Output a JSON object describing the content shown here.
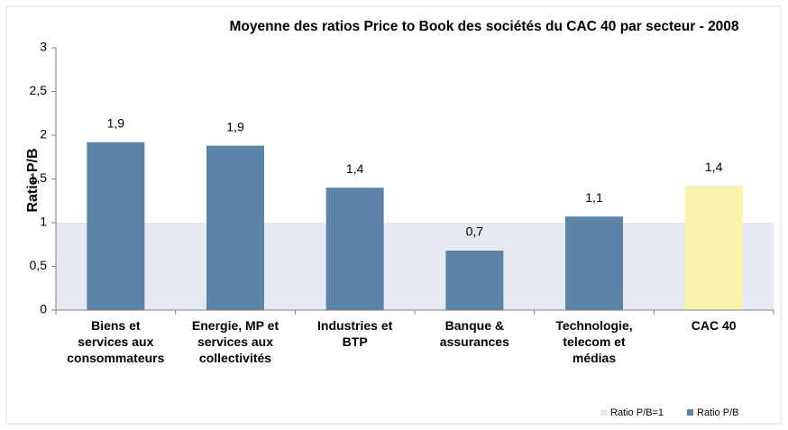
{
  "chart_data": {
    "type": "bar",
    "title": "Moyenne des ratios Price to Book des sociétés du CAC 40 par secteur - 2008",
    "y_label": "Ratio P/B",
    "categories": [
      "Biens et\nservices aux\nconsommateurs",
      "Energie, MP et\nservices aux\ncollectivités",
      "Industries et\nBTP",
      "Banque &\nassurances",
      "Technologie,\ntelecom et\nmédias",
      "CAC 40"
    ],
    "series": [
      {
        "name": "Ratio P/B=1",
        "color": "#e6eaf0",
        "kind": "band",
        "values": [
          1,
          1,
          1,
          1,
          1,
          1
        ]
      },
      {
        "name": "Ratio P/B",
        "color": "#5b84a7",
        "values": [
          1.92,
          1.88,
          1.4,
          0.68,
          1.07,
          1.42
        ],
        "value_labels": [
          "1,9",
          "1,9",
          "1,4",
          "0,7",
          "1,1",
          "1,4"
        ],
        "colors": [
          "#5b84a7",
          "#5b84a7",
          "#5b84a7",
          "#5b84a7",
          "#5b84a7",
          "#f6f4aa"
        ]
      }
    ],
    "ylim": [
      0,
      3
    ],
    "yticks": [
      0,
      {
        "value": 0.5,
        "label": "0,5"
      },
      1,
      {
        "value": 1.5,
        "label": "1,5"
      },
      2,
      {
        "value": 2.5,
        "label": "2,5"
      },
      3
    ],
    "legend": "bottom-right"
  }
}
